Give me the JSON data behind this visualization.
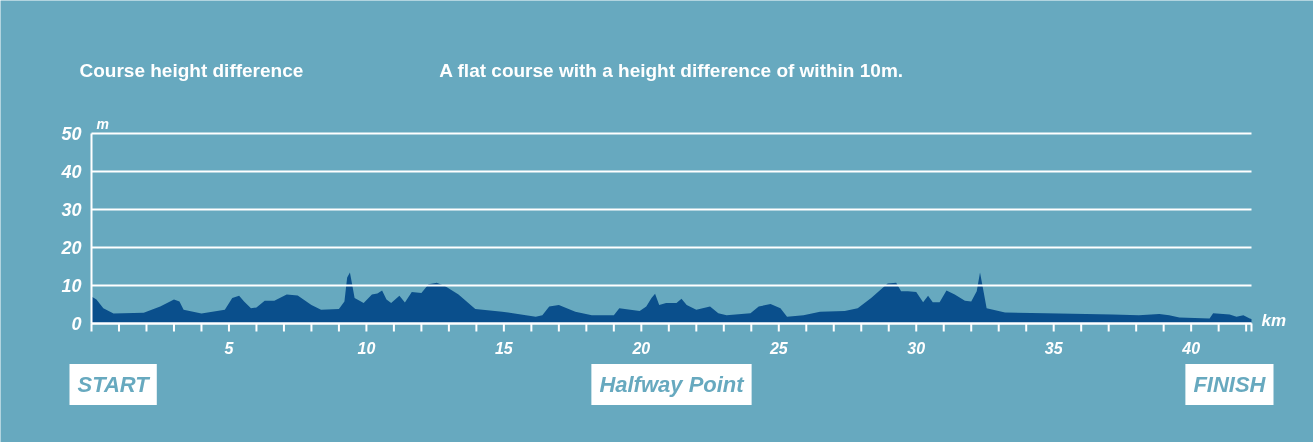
{
  "chart_data": {
    "type": "area",
    "title": "Course height difference",
    "subtitle": "A flat course with a height difference of within 10m.",
    "xlabel": "km",
    "ylabel": "m",
    "x": [
      0,
      0.18,
      0.43,
      0.8,
      1.9,
      2.5,
      3.0,
      3.2,
      3.35,
      4.0,
      4.85,
      5.12,
      5.37,
      5.55,
      5.8,
      6.0,
      6.3,
      6.65,
      7.1,
      7.5,
      8.0,
      8.35,
      9.0,
      9.2,
      9.3,
      9.4,
      9.48,
      9.57,
      9.9,
      10.2,
      10.4,
      10.57,
      10.73,
      10.9,
      11.2,
      11.4,
      11.65,
      12.0,
      12.26,
      12.56,
      12.87,
      13.35,
      13.96,
      14.94,
      16.16,
      16.4,
      16.65,
      17.0,
      17.6,
      18.2,
      19.0,
      19.2,
      19.6,
      19.94,
      20.18,
      20.37,
      20.5,
      20.65,
      20.9,
      21.28,
      21.46,
      21.65,
      22.0,
      22.5,
      22.8,
      23.1,
      23.97,
      24.27,
      24.7,
      25.06,
      25.3,
      25.9,
      26.5,
      27.4,
      27.87,
      28.36,
      28.96,
      29.27,
      29.45,
      29.7,
      30.0,
      30.25,
      30.43,
      30.6,
      30.85,
      31.1,
      31.4,
      31.77,
      32.0,
      32.2,
      32.32,
      32.4,
      32.56,
      33.23,
      34.7,
      37.14,
      38.1,
      38.84,
      39.2,
      39.57,
      40.67,
      40.8,
      41.4,
      41.65,
      41.9,
      42.13,
      42.195
    ],
    "series": [
      {
        "color": "#0a4f8c",
        "values": [
          7.1,
          6.3,
          4.0,
          2.6,
          2.8,
          4.5,
          6.3,
          5.8,
          3.6,
          2.6,
          3.6,
          6.7,
          7.3,
          5.8,
          4.0,
          4.2,
          6.0,
          6.0,
          7.6,
          7.4,
          4.9,
          3.6,
          3.8,
          5.8,
          12.1,
          13.4,
          10.3,
          6.7,
          5.4,
          7.6,
          7.9,
          8.7,
          6.3,
          5.4,
          7.3,
          5.5,
          8.3,
          8.0,
          10.3,
          10.7,
          9.8,
          7.6,
          3.8,
          3.1,
          1.8,
          2.2,
          4.5,
          4.9,
          3.1,
          2.2,
          2.2,
          4.0,
          3.6,
          3.3,
          4.5,
          6.7,
          7.8,
          4.9,
          5.4,
          5.4,
          6.5,
          4.9,
          3.6,
          4.5,
          2.7,
          2.2,
          2.7,
          4.5,
          5.1,
          4.0,
          1.8,
          2.2,
          3.1,
          3.3,
          4.0,
          6.7,
          10.5,
          10.7,
          8.5,
          8.5,
          8.3,
          5.6,
          7.3,
          5.6,
          5.6,
          8.7,
          7.6,
          6.0,
          5.8,
          8.5,
          13.4,
          10.3,
          4.0,
          2.9,
          2.7,
          2.4,
          2.2,
          2.5,
          2.2,
          1.6,
          1.3,
          2.7,
          2.4,
          1.8,
          2.2,
          1.3,
          1.2
        ]
      }
    ],
    "xlim": [
      0,
      42.195
    ],
    "ylim": [
      0,
      50
    ],
    "xticks": [
      {
        "value": 0,
        "label": null
      },
      {
        "value": 1,
        "label": null
      },
      {
        "value": 2,
        "label": null
      },
      {
        "value": 3,
        "label": null
      },
      {
        "value": 4,
        "label": null
      },
      5,
      {
        "value": 6,
        "label": null
      },
      {
        "value": 7,
        "label": null
      },
      {
        "value": 8,
        "label": null
      },
      {
        "value": 9,
        "label": null
      },
      10,
      {
        "value": 11,
        "label": null
      },
      {
        "value": 12,
        "label": null
      },
      {
        "value": 13,
        "label": null
      },
      {
        "value": 14,
        "label": null
      },
      15,
      {
        "value": 16,
        "label": null
      },
      {
        "value": 17,
        "label": null
      },
      {
        "value": 18,
        "label": null
      },
      {
        "value": 19,
        "label": null
      },
      20,
      {
        "value": 21,
        "label": null
      },
      {
        "value": 22,
        "label": null
      },
      {
        "value": 23,
        "label": null
      },
      {
        "value": 24,
        "label": null
      },
      25,
      {
        "value": 26,
        "label": null
      },
      {
        "value": 27,
        "label": null
      },
      {
        "value": 28,
        "label": null
      },
      {
        "value": 29,
        "label": null
      },
      30,
      {
        "value": 31,
        "label": null
      },
      {
        "value": 32,
        "label": null
      },
      {
        "value": 33,
        "label": null
      },
      {
        "value": 34,
        "label": null
      },
      35,
      {
        "value": 36,
        "label": null
      },
      {
        "value": 37,
        "label": null
      },
      {
        "value": 38,
        "label": null
      },
      {
        "value": 39,
        "label": null
      },
      40,
      {
        "value": 41,
        "label": null
      },
      {
        "value": 42,
        "label": null
      },
      {
        "value": 42.195,
        "label": null
      }
    ],
    "yticks": [
      0,
      10,
      20,
      30,
      40,
      50
    ],
    "grid": "y",
    "annotations": [
      {
        "text": "START",
        "x": 0,
        "y": 0
      },
      {
        "text": "Halfway Point",
        "x": 21.0975,
        "y": 0
      },
      {
        "text": "FINISH",
        "x": 42.195,
        "y": 0
      }
    ]
  }
}
